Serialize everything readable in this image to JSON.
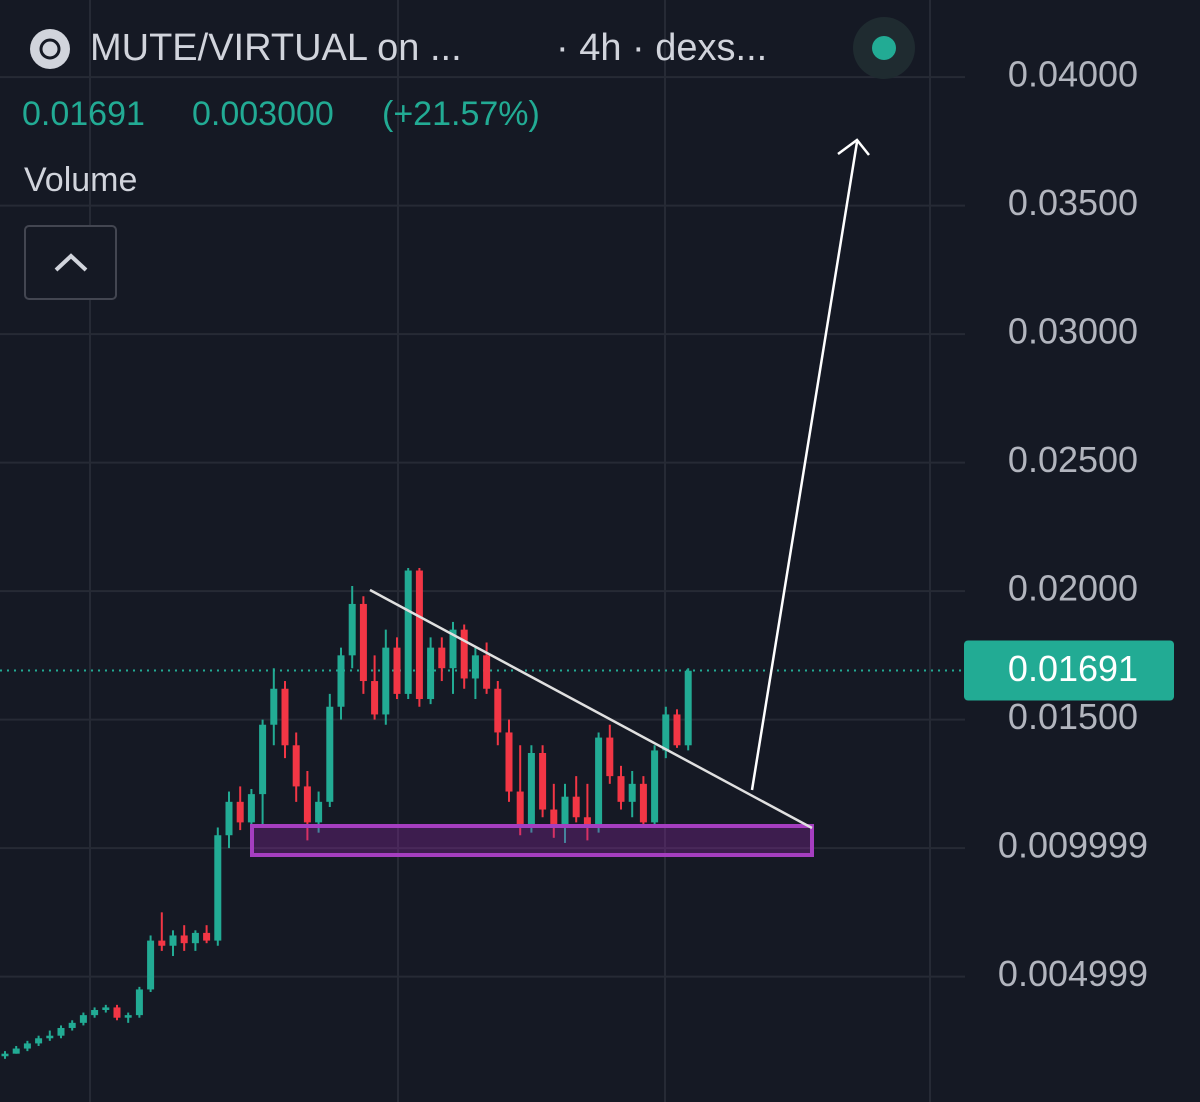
{
  "chart_data": {
    "type": "candlestick",
    "title": "MUTE/VIRTUAL on ...",
    "subtitle": "· 4h · dexs...",
    "price": "0.01691",
    "change": "0.003000",
    "change_pct": "(+21.57%)",
    "indicator": "Volume",
    "up_color": "#22ab94",
    "down_color": "#f23645",
    "ylim": [
      0.00012,
      0.043
    ],
    "yticks": [
      {
        "value": 0.04,
        "label": "0.04000"
      },
      {
        "value": 0.035,
        "label": "0.03500"
      },
      {
        "value": 0.03,
        "label": "0.03000"
      },
      {
        "value": 0.025,
        "label": "0.02500"
      },
      {
        "value": 0.02,
        "label": "0.02000"
      },
      {
        "value": 0.015,
        "label": "0.01500"
      },
      0.009999,
      0.004999
    ],
    "grid": true,
    "last_price": 0.01691,
    "open": [
      0.0019,
      0.002,
      0.0022,
      0.0024,
      0.0026,
      0.0027,
      0.003,
      0.0032,
      0.0035,
      0.0037,
      0.0038,
      0.0034,
      0.0035,
      0.0045,
      0.0064,
      0.0062,
      0.0066,
      0.0063,
      0.0067,
      0.0064,
      0.0105,
      0.0118,
      0.011,
      0.0121,
      0.0148,
      0.0162,
      0.014,
      0.0124,
      0.011,
      0.0118,
      0.0155,
      0.0175,
      0.0195,
      0.0165,
      0.0152,
      0.0178,
      0.016,
      0.0208,
      0.0158,
      0.0178,
      0.017,
      0.0185,
      0.0166,
      0.0175,
      0.0162,
      0.0145,
      0.0122,
      0.0108,
      0.0137,
      0.0115,
      0.0108,
      0.012,
      0.0112,
      0.0108,
      0.0143,
      0.0128,
      0.0118,
      0.0125,
      0.011,
      0.0138,
      0.0152,
      0.014
    ],
    "high": [
      0.0021,
      0.0023,
      0.0025,
      0.0027,
      0.0029,
      0.0031,
      0.0033,
      0.0036,
      0.0038,
      0.0039,
      0.0039,
      0.0036,
      0.0046,
      0.0066,
      0.0075,
      0.0068,
      0.007,
      0.0068,
      0.007,
      0.0108,
      0.0122,
      0.0124,
      0.0123,
      0.015,
      0.017,
      0.0165,
      0.0145,
      0.013,
      0.0122,
      0.016,
      0.0178,
      0.0202,
      0.0198,
      0.0175,
      0.0185,
      0.0182,
      0.0209,
      0.0209,
      0.0182,
      0.0182,
      0.0188,
      0.0187,
      0.0178,
      0.018,
      0.0165,
      0.015,
      0.014,
      0.014,
      0.014,
      0.0125,
      0.0125,
      0.0128,
      0.0125,
      0.0145,
      0.0148,
      0.0132,
      0.013,
      0.0128,
      0.014,
      0.0155,
      0.0154,
      0.017
    ],
    "low": [
      0.0018,
      0.002,
      0.0021,
      0.0023,
      0.0025,
      0.0026,
      0.0029,
      0.0031,
      0.0034,
      0.0036,
      0.0033,
      0.0032,
      0.0034,
      0.0044,
      0.006,
      0.0058,
      0.006,
      0.006,
      0.0063,
      0.0062,
      0.01,
      0.0107,
      0.0107,
      0.0108,
      0.014,
      0.0135,
      0.0118,
      0.0103,
      0.0106,
      0.0116,
      0.015,
      0.017,
      0.016,
      0.015,
      0.0148,
      0.0158,
      0.0158,
      0.0155,
      0.0156,
      0.0165,
      0.016,
      0.0162,
      0.0158,
      0.016,
      0.014,
      0.0118,
      0.0105,
      0.0106,
      0.0112,
      0.0104,
      0.0102,
      0.011,
      0.0103,
      0.0106,
      0.0125,
      0.0115,
      0.0112,
      0.0108,
      0.0108,
      0.0135,
      0.0139,
      0.0138
    ],
    "close": [
      0.002,
      0.0022,
      0.0024,
      0.0026,
      0.0027,
      0.003,
      0.0032,
      0.0035,
      0.0037,
      0.0038,
      0.0034,
      0.0035,
      0.0045,
      0.0064,
      0.0062,
      0.0066,
      0.0063,
      0.0067,
      0.0064,
      0.0105,
      0.0118,
      0.011,
      0.0121,
      0.0148,
      0.0162,
      0.014,
      0.0124,
      0.011,
      0.0118,
      0.0155,
      0.0175,
      0.0195,
      0.0165,
      0.0152,
      0.0178,
      0.016,
      0.0208,
      0.0158,
      0.0178,
      0.017,
      0.0185,
      0.0166,
      0.0175,
      0.0162,
      0.0145,
      0.0122,
      0.0108,
      0.0137,
      0.0115,
      0.0108,
      0.012,
      0.0112,
      0.0108,
      0.0143,
      0.0128,
      0.0118,
      0.0125,
      0.011,
      0.0138,
      0.0152,
      0.014,
      0.0169
    ]
  }
}
